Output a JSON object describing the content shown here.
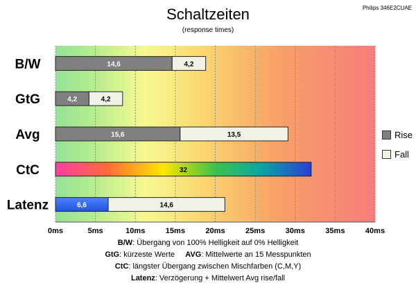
{
  "chart_data": {
    "type": "bar",
    "orientation": "horizontal",
    "stacked": true,
    "title": "Schaltzeiten",
    "subtitle": "(response times)",
    "model": "Philips 346E2CUAE",
    "xlim": [
      0,
      40
    ],
    "x_ticks": [
      "0ms",
      "5ms",
      "10ms",
      "15ms",
      "20ms",
      "25ms",
      "30ms",
      "35ms",
      "40ms"
    ],
    "categories": [
      "B/W",
      "GtG",
      "Avg",
      "CtC",
      "Latenz"
    ],
    "series": [
      {
        "name": "Rise",
        "color": "#808080",
        "values": [
          14.6,
          4.2,
          15.6,
          null,
          null
        ],
        "labels": [
          "14,6",
          "4,2",
          "15,6",
          "",
          ""
        ]
      },
      {
        "name": "Fall",
        "color": "#f2f1e6",
        "values": [
          4.2,
          4.2,
          13.5,
          null,
          14.6
        ],
        "labels": [
          "4,2",
          "4,2",
          "13,5",
          "",
          "14,6"
        ]
      }
    ],
    "special_bars": [
      {
        "category": "CtC",
        "value": 32,
        "label": "32",
        "style": "rainbow"
      },
      {
        "category": "Latenz",
        "value": 6.6,
        "label": "6,6",
        "style": "blue"
      }
    ],
    "legend": {
      "position": "right",
      "entries": [
        "Rise",
        "Fall"
      ]
    },
    "background": "gradient green-yellow-red"
  },
  "notes": [
    {
      "bold": "B/W",
      "text": ":  Übergang von 100% Helligkeit auf 0% Helligkeit"
    },
    {
      "bold": "GtG",
      "text": ": kürzeste  Werte",
      "bold2": "AVG",
      "text2": ": Mittelwerte  an 15 Messpunkten"
    },
    {
      "bold": "CtC",
      "text": ": längster Übergang  zwischen Mischfarben (C,M,Y)"
    },
    {
      "bold": "Latenz",
      "text": ": Verzögerung  + Mittelwert  Avg rise/fall"
    }
  ]
}
